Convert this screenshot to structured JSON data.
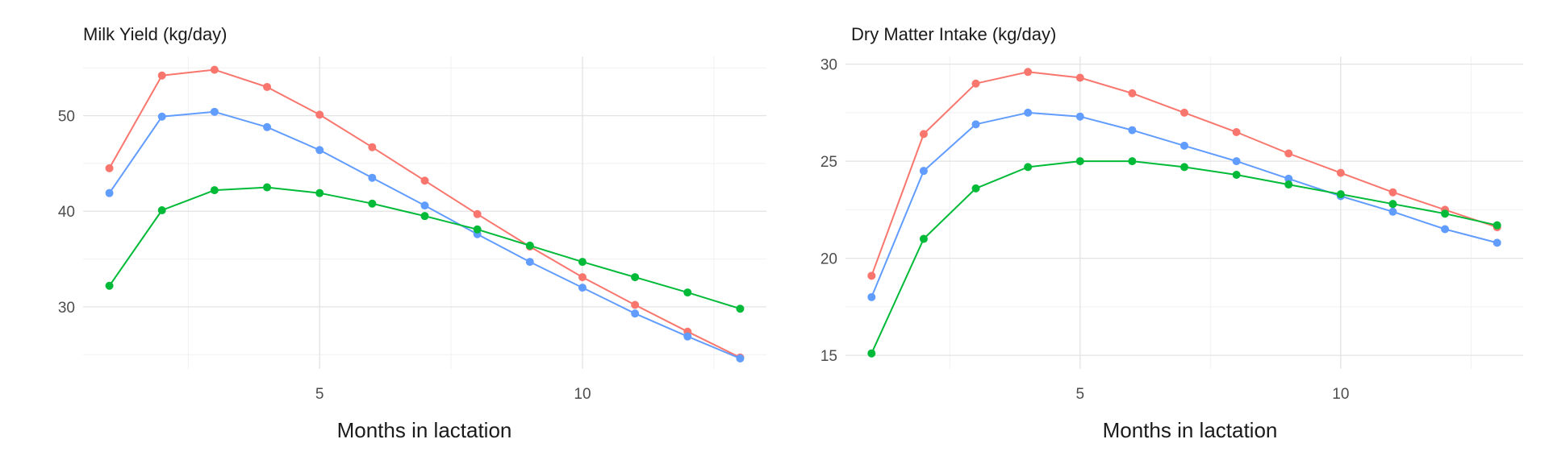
{
  "chart_data": [
    {
      "type": "line",
      "title": "Milk Yield (kg/day)",
      "xlabel": "Months in lactation",
      "ylabel": "",
      "x": [
        1,
        2,
        3,
        4,
        5,
        6,
        7,
        8,
        9,
        10,
        11,
        12,
        13
      ],
      "xlim": [
        0.5,
        13.5
      ],
      "ylim": [
        23.5,
        56.2
      ],
      "xticks": [
        5,
        10
      ],
      "yticks": [
        30,
        40,
        50
      ],
      "grid": true,
      "legend": "none",
      "series": [
        {
          "color": "#F8766D",
          "values": [
            44.5,
            54.2,
            54.8,
            53.0,
            50.1,
            46.7,
            43.2,
            39.7,
            36.3,
            33.1,
            30.2,
            27.4,
            24.7
          ]
        },
        {
          "color": "#619CFF",
          "values": [
            41.9,
            49.9,
            50.4,
            48.8,
            46.4,
            43.5,
            40.6,
            37.6,
            34.7,
            32.0,
            29.3,
            26.9,
            24.6
          ]
        },
        {
          "color": "#00BA38",
          "values": [
            32.2,
            40.1,
            42.2,
            42.5,
            41.9,
            40.8,
            39.5,
            38.1,
            36.4,
            34.7,
            33.1,
            31.5,
            29.8
          ]
        }
      ]
    },
    {
      "type": "line",
      "title": "Dry Matter Intake (kg/day)",
      "xlabel": "Months in lactation",
      "ylabel": "",
      "x": [
        1,
        2,
        3,
        4,
        5,
        6,
        7,
        8,
        9,
        10,
        11,
        12,
        13
      ],
      "xlim": [
        0.5,
        13.5
      ],
      "ylim": [
        14.3,
        30.4
      ],
      "xticks": [
        5,
        10
      ],
      "yticks": [
        15,
        20,
        25,
        30
      ],
      "grid": true,
      "legend": "none",
      "series": [
        {
          "color": "#F8766D",
          "values": [
            19.1,
            26.4,
            29.0,
            29.6,
            29.3,
            28.5,
            27.5,
            26.5,
            25.4,
            24.4,
            23.4,
            22.5,
            21.6
          ]
        },
        {
          "color": "#619CFF",
          "values": [
            18.0,
            24.5,
            26.9,
            27.5,
            27.3,
            26.6,
            25.8,
            25.0,
            24.1,
            23.2,
            22.4,
            21.5,
            20.8
          ]
        },
        {
          "color": "#00BA38",
          "values": [
            15.1,
            21.0,
            23.6,
            24.7,
            25.0,
            25.0,
            24.7,
            24.3,
            23.8,
            23.3,
            22.8,
            22.3,
            21.7
          ]
        }
      ]
    }
  ]
}
